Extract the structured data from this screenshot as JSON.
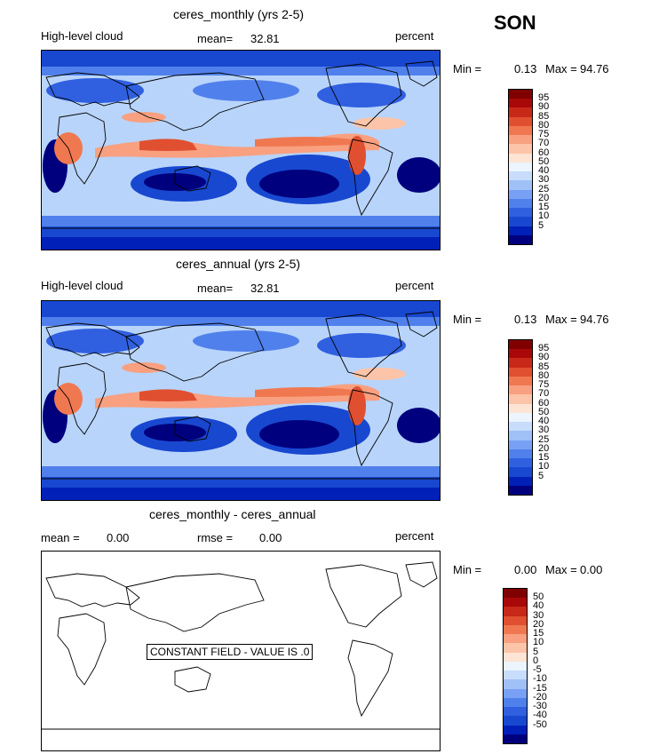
{
  "season": "SON",
  "colors": {
    "cloud_scale": [
      "#00007f",
      "#0020b8",
      "#1848d0",
      "#3060e0",
      "#5080ec",
      "#78a0f4",
      "#a0c0f8",
      "#c8dcfc",
      "#ecf4fe",
      "#fde4d4",
      "#fcc4a8",
      "#f8a080",
      "#f07850",
      "#e05030",
      "#c82818",
      "#a80808",
      "#800000"
    ],
    "diff_scale": [
      "#00007f",
      "#0020b8",
      "#1848d0",
      "#3060e0",
      "#5080ec",
      "#78a0f4",
      "#a0c0f8",
      "#c8dcfc",
      "#ecf4fe",
      "#fde4d4",
      "#fcc4a8",
      "#f8a080",
      "#f07850",
      "#e05030",
      "#c82818",
      "#a80808",
      "#800000"
    ]
  },
  "panels": [
    {
      "title": "ceres_monthly (yrs 2-5)",
      "left_label": "High-level cloud",
      "mean_label": "mean=",
      "mean_value": "32.81",
      "units": "percent",
      "min_label": "Min =",
      "min_value": "0.13",
      "max_label": "Max =",
      "max_value": "94.76",
      "ticks": [
        "95",
        "90",
        "85",
        "80",
        "75",
        "70",
        "60",
        "50",
        "40",
        "30",
        "25",
        "20",
        "15",
        "10",
        "5"
      ]
    },
    {
      "title": "ceres_annual (yrs 2-5)",
      "left_label": "High-level cloud",
      "mean_label": "mean=",
      "mean_value": "32.81",
      "units": "percent",
      "min_label": "Min =",
      "min_value": "0.13",
      "max_label": "Max =",
      "max_value": "94.76",
      "ticks": [
        "95",
        "90",
        "85",
        "80",
        "75",
        "70",
        "60",
        "50",
        "40",
        "30",
        "25",
        "20",
        "15",
        "10",
        "5"
      ]
    },
    {
      "title": "ceres_monthly - ceres_annual",
      "mean_label": "mean =",
      "mean_value": "0.00",
      "rmse_label": "rmse =",
      "rmse_value": "0.00",
      "units": "percent",
      "min_label": "Min =",
      "min_value": "0.00",
      "max_label": "Max =",
      "max_value": "0.00",
      "constant_label": "CONSTANT FIELD - VALUE IS .0",
      "ticks": [
        "50",
        "40",
        "30",
        "20",
        "15",
        "10",
        "5",
        "0",
        "-5",
        "-10",
        "-15",
        "-20",
        "-30",
        "-40",
        "-50"
      ]
    }
  ]
}
